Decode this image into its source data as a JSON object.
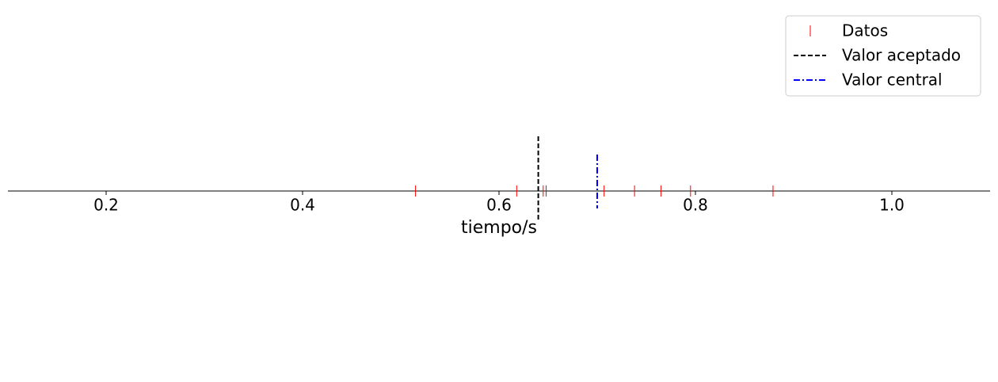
{
  "chart_data": {
    "type": "strip",
    "xlabel": "tiempo/s",
    "xlim": [
      0.1,
      1.1
    ],
    "xticks": [
      0.2,
      0.4,
      0.6,
      0.8,
      {
        "value": 1,
        "label": "1.0"
      }
    ],
    "legend": "upper right",
    "series": [
      {
        "name": "Datos",
        "color": "red",
        "style": "tick",
        "values": [
          0.515,
          0.618,
          0.645,
          0.648,
          0.707,
          0.738,
          0.765,
          0.795,
          0.879
        ]
      },
      {
        "name": "Valor aceptado",
        "color": "black",
        "style": "dashed",
        "values": [
          0.64
        ]
      },
      {
        "name": "Valor central",
        "color": "blue",
        "style": "dashdot",
        "values": [
          0.7
        ]
      }
    ]
  }
}
